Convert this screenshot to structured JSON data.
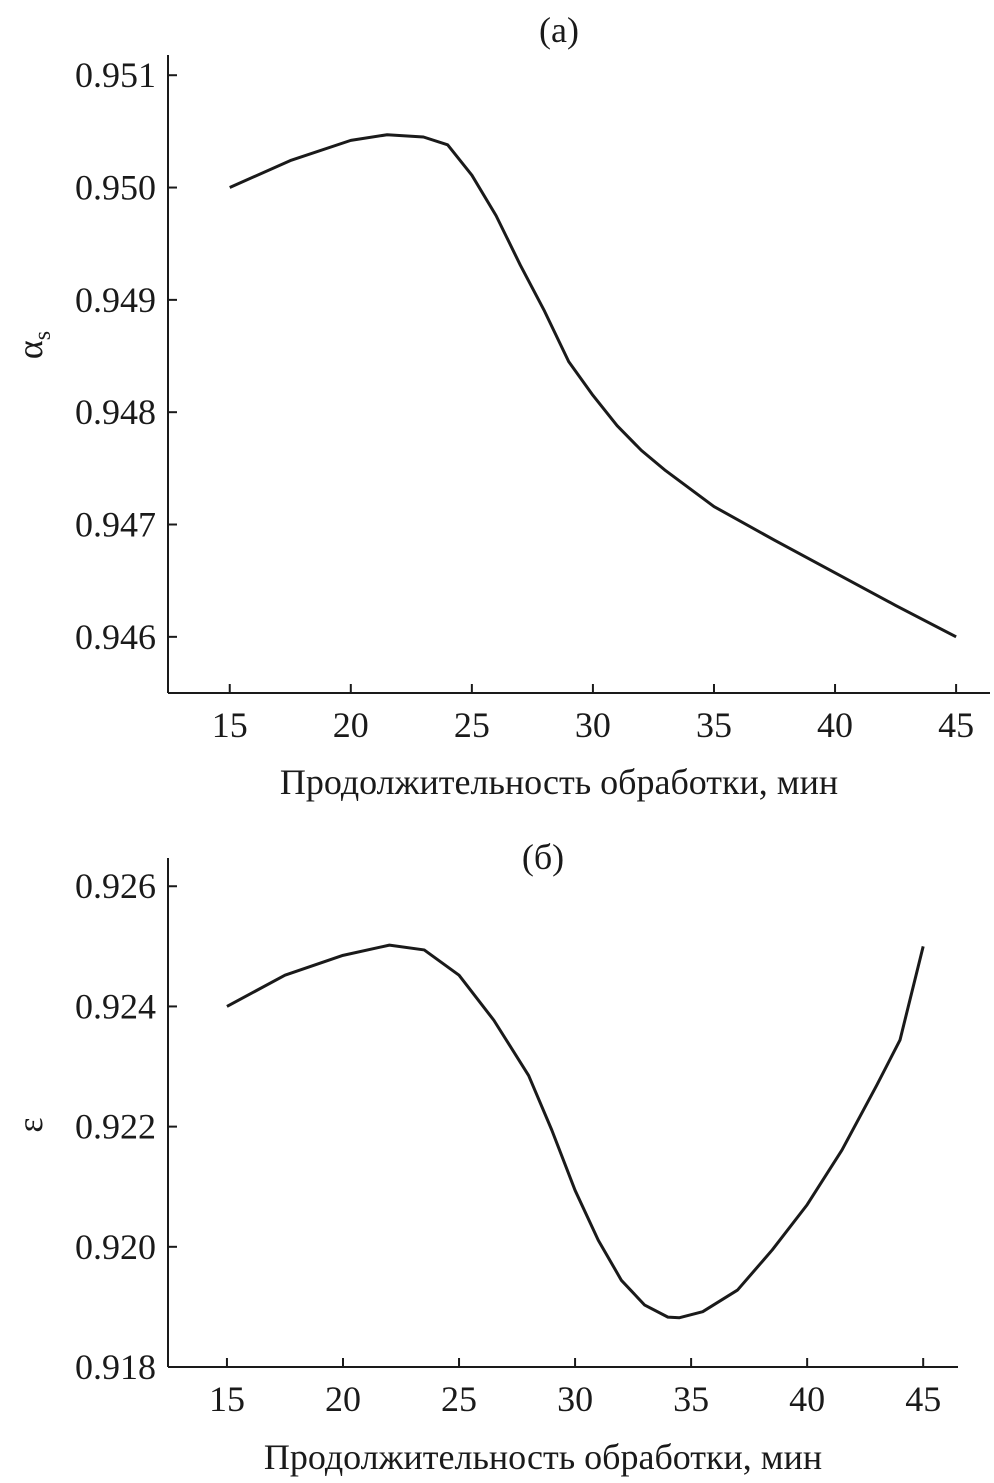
{
  "chart_data": [
    {
      "type": "line",
      "title": "(a)",
      "xlabel": "Продолжительность обработки, мин",
      "ylabel": "α",
      "ylabel_subscript": "s",
      "x": [
        15,
        17.5,
        20,
        21.5,
        23,
        24,
        25,
        26,
        27,
        28,
        29,
        30,
        31,
        32,
        33,
        35,
        37.5,
        40,
        42.5,
        45
      ],
      "series": [
        {
          "color": "#1a1a1a",
          "values": [
            0.95,
            0.95024,
            0.95042,
            0.95047,
            0.95045,
            0.95038,
            0.95011,
            0.94975,
            0.94931,
            0.9489,
            0.94845,
            0.94815,
            0.94788,
            0.94766,
            0.94748,
            0.94716,
            0.94686,
            0.94657,
            0.94628,
            0.946
          ]
        }
      ],
      "xlim": [
        12.45,
        46.4
      ],
      "xticks": [
        15,
        20,
        25,
        30,
        35,
        40,
        45
      ],
      "ylim": [
        0.9455,
        0.95118
      ],
      "yticks": [
        0.946,
        0.947,
        0.948,
        0.949,
        {
          "value": 0.95,
          "label": "0.950"
        },
        0.951
      ]
    },
    {
      "type": "line",
      "title": "(б)",
      "xlabel": "Продолжительность обработки, мин",
      "ylabel": "ε",
      "x": [
        15,
        17.5,
        20,
        22,
        23.5,
        25,
        26.5,
        28,
        29,
        30,
        31,
        32,
        33,
        34,
        34.5,
        35.5,
        37,
        38.5,
        40,
        41.5,
        43,
        44,
        45
      ],
      "series": [
        {
          "color": "#1a1a1a",
          "values": [
            0.924,
            0.92452,
            0.92485,
            0.92502,
            0.92494,
            0.92452,
            0.92377,
            0.92285,
            0.92194,
            0.92094,
            0.92011,
            0.91944,
            0.91903,
            0.91883,
            0.91882,
            0.91892,
            0.91928,
            0.91995,
            0.9207,
            0.92161,
            0.92269,
            0.92344,
            0.925
          ]
        }
      ],
      "xlim": [
        12.46,
        46.5
      ],
      "xticks": [
        15,
        20,
        25,
        30,
        35,
        40,
        45
      ],
      "ylim": [
        0.918,
        0.92647
      ],
      "yticks": [
        0.918,
        {
          "value": 0.92,
          "label": "0.920"
        },
        0.922,
        0.924,
        0.926
      ]
    }
  ]
}
